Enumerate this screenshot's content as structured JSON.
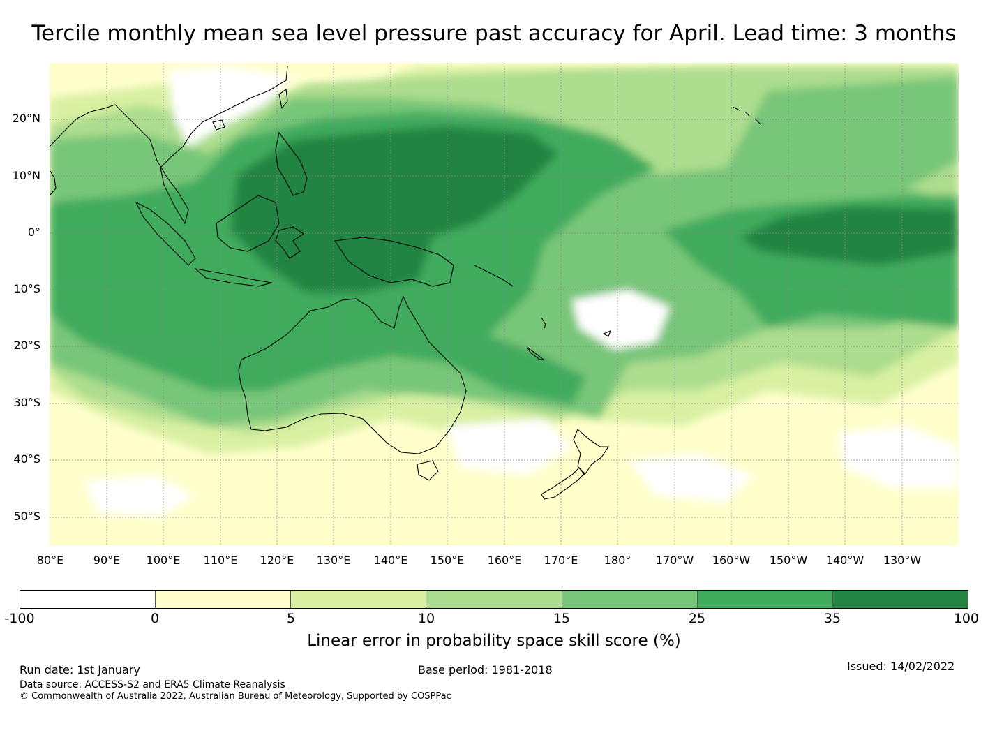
{
  "title": "Tercile monthly mean sea level pressure past accuracy for April. Lead time: 3 months",
  "map": {
    "region": "Pacific and Indian Ocean, 80°E to 130°W, 55°S to 30°N",
    "lat_labels": [
      "20°N",
      "10°N",
      "0°",
      "10°S",
      "20°S",
      "30°S",
      "40°S",
      "50°S"
    ],
    "lon_labels": [
      "80°E",
      "90°E",
      "100°E",
      "110°E",
      "120°E",
      "130°E",
      "140°E",
      "150°E",
      "160°E",
      "170°E",
      "180°",
      "170°W",
      "160°W",
      "150°W",
      "140°W",
      "130°W"
    ]
  },
  "colorbar": {
    "ticks": [
      "-100",
      "0",
      "5",
      "10",
      "15",
      "25",
      "35",
      "100"
    ],
    "colors": [
      "#ffffff",
      "#ffffcc",
      "#d9f0a3",
      "#addd8e",
      "#78c679",
      "#41ab5d",
      "#238443"
    ],
    "label": "Linear error in probability space skill score (%)"
  },
  "footer": {
    "run_date": "Run date: 1st January",
    "base_period": "Base period: 1981-2018",
    "issued": "Issued: 14/02/2022",
    "data_source": "Data source: ACCESS-S2 and ERA5 Climate Reanalysis",
    "copyright": "© Commonwealth of Australia 2022, Australian Bureau of Meteorology, Supported by COSPPac"
  }
}
